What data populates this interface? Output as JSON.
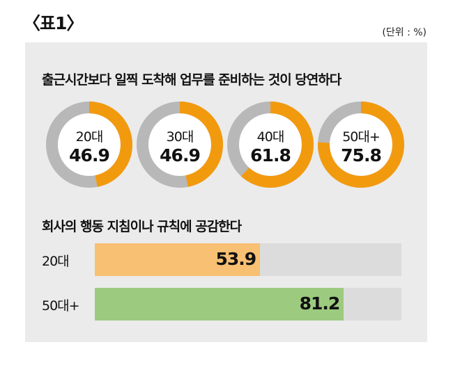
{
  "title": "〈표1〉",
  "unit": "(단위 : %)",
  "colors": {
    "panel": "#ebebeb",
    "donut_fill": "#f29a0e",
    "donut_rest": "#b8b8b8",
    "bar_track": "#dcdcdc",
    "bar_20": "#f8c072",
    "bar_50": "#9ccb7f"
  },
  "chart_data": [
    {
      "type": "pie",
      "title": "출근시간보다 일찍 도착해 업무를 준비하는 것이 당연하다",
      "categories": [
        "20대",
        "30대",
        "40대",
        "50대+"
      ],
      "values": [
        46.9,
        46.9,
        61.8,
        75.8
      ],
      "ylim": [
        0,
        100
      ]
    },
    {
      "type": "bar",
      "orientation": "horizontal",
      "title": "회사의 행동 지침이나 규칙에 공감한다",
      "categories": [
        "20대",
        "50대+"
      ],
      "values": [
        53.9,
        81.2
      ],
      "xlim": [
        0,
        100
      ]
    }
  ]
}
